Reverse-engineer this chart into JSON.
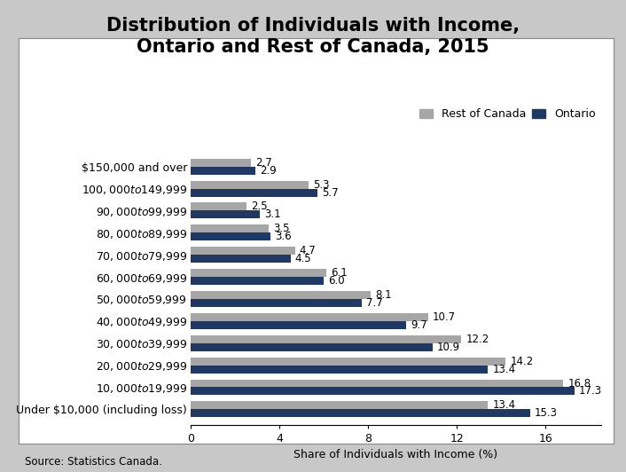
{
  "title": "Distribution of Individuals with Income,\nOntario and Rest of Canada, 2015",
  "categories_bottom_to_top": [
    "Under $10,000 (including loss)",
    "$10,000 to $19,999",
    "$20,000 to $29,999",
    "$30,000 to $39,999",
    "$40,000 to $49,999",
    "$50,000 to $59,999",
    "$60,000 to $69,999",
    "$70,000 to $79,999",
    "$80,000 to $89,999",
    "$90,000 to $99,999",
    "$100,000 to $149,999",
    "$150,000 and over"
  ],
  "rest_of_canada_bottom_to_top": [
    13.4,
    16.8,
    14.2,
    12.2,
    10.7,
    8.1,
    6.1,
    4.7,
    3.5,
    2.5,
    5.3,
    2.7
  ],
  "ontario_bottom_to_top": [
    15.3,
    17.3,
    13.4,
    10.9,
    9.7,
    7.7,
    6.0,
    4.5,
    3.6,
    3.1,
    5.7,
    2.9
  ],
  "rest_of_canada_color": "#a6a6a6",
  "ontario_color": "#1f3864",
  "xlabel": "Share of Individuals with Income (%)",
  "xlim": [
    0,
    18.5
  ],
  "xticks": [
    0,
    4,
    8,
    12,
    16
  ],
  "title_fontsize": 15,
  "label_fontsize": 9,
  "tick_fontsize": 9,
  "legend_fontsize": 9,
  "source_text": "Source: Statistics Canada.",
  "background_outer": "#c8c8c8",
  "background_inner": "#ffffff",
  "bar_height": 0.36
}
